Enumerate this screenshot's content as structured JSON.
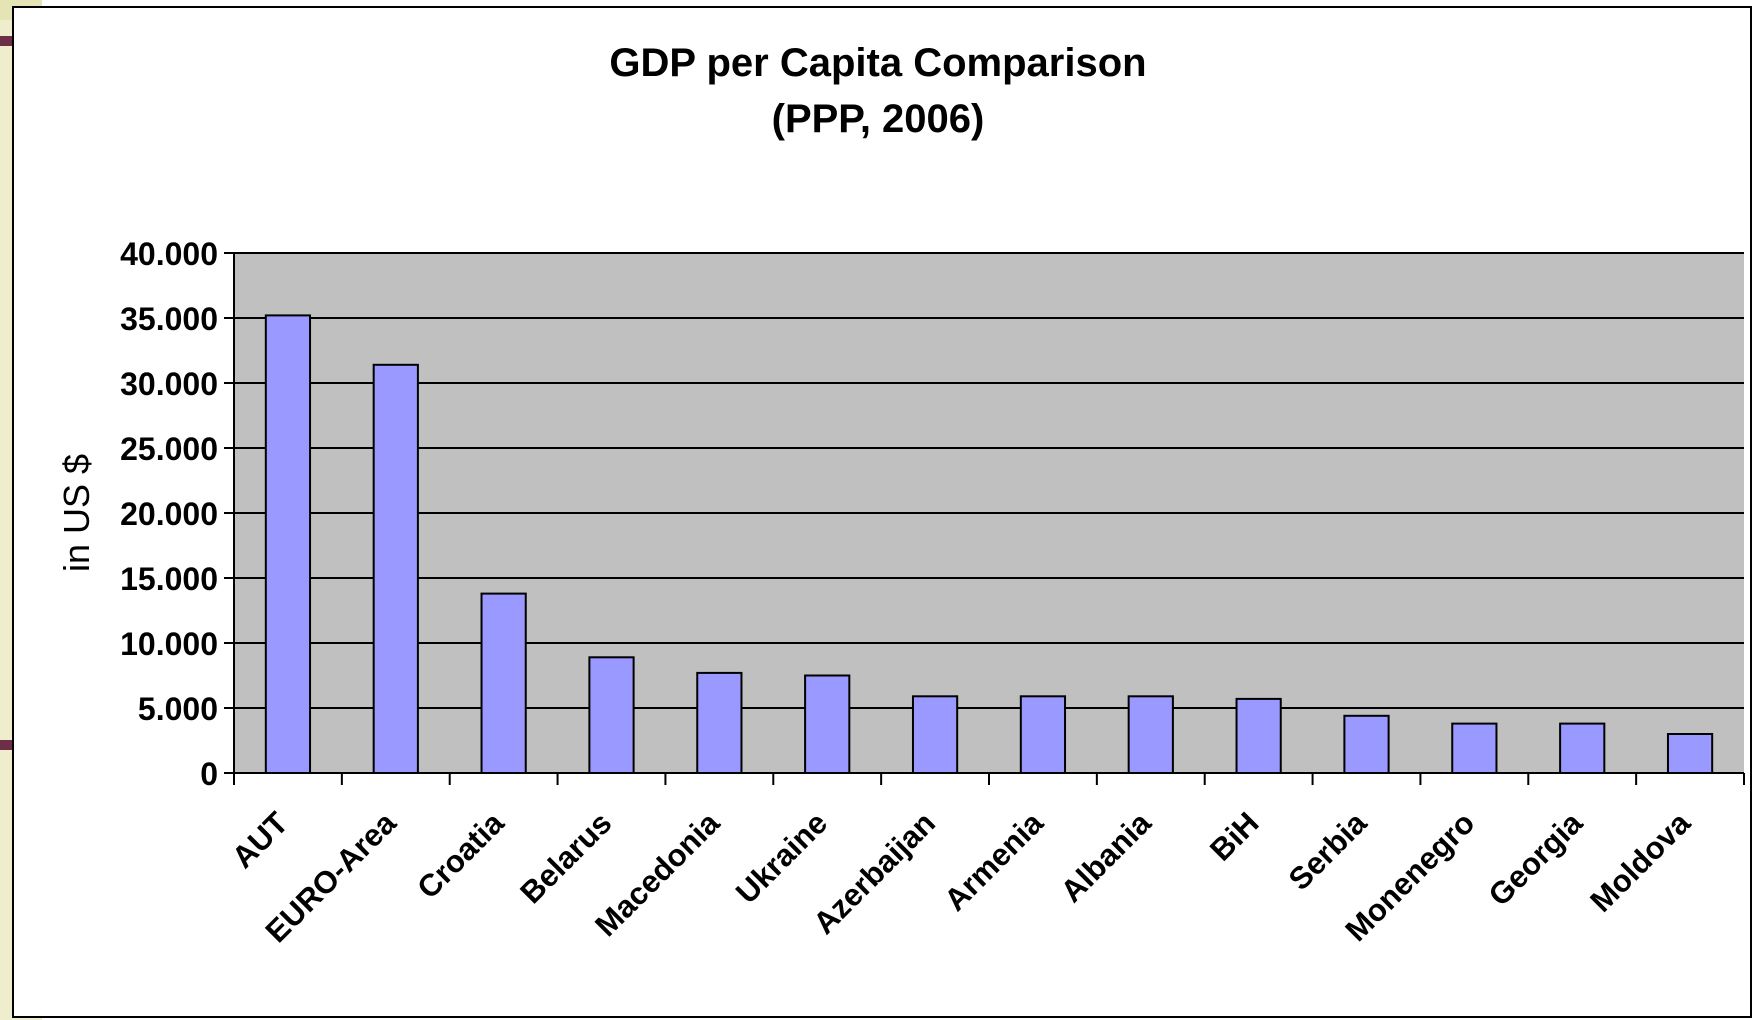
{
  "colors": {
    "plot_area": "#c0c0c0",
    "bar_fill": "#9999ff",
    "bar_stroke": "#000000",
    "gridline": "#000000",
    "slide_strip": "#eeeecc",
    "slide_accent": "#6d2f48"
  },
  "chart_data": {
    "type": "bar",
    "title": "GDP per Capita Comparison",
    "subtitle": "(PPP, 2006)",
    "xlabel": "",
    "ylabel": "in US $",
    "ylim": [
      0,
      40000
    ],
    "yticks": [
      0,
      5000,
      10000,
      15000,
      20000,
      25000,
      30000,
      35000,
      40000
    ],
    "ytick_labels": [
      "0",
      "5.000",
      "10.000",
      "15.000",
      "20.000",
      "25.000",
      "30.000",
      "35.000",
      "40.000"
    ],
    "grid": true,
    "legend": "none",
    "categories": [
      "AUT",
      "EURO-Area",
      "Croatia",
      "Belarus",
      "Macedonia",
      "Ukraine",
      "Azerbaijan",
      "Armenia",
      "Albania",
      "BiH",
      "Serbia",
      "Monenegro",
      "Georgia",
      "Moldova"
    ],
    "values": [
      35200,
      31400,
      13800,
      8900,
      7700,
      7500,
      5900,
      5900,
      5900,
      5700,
      4400,
      3800,
      3800,
      3000
    ]
  }
}
